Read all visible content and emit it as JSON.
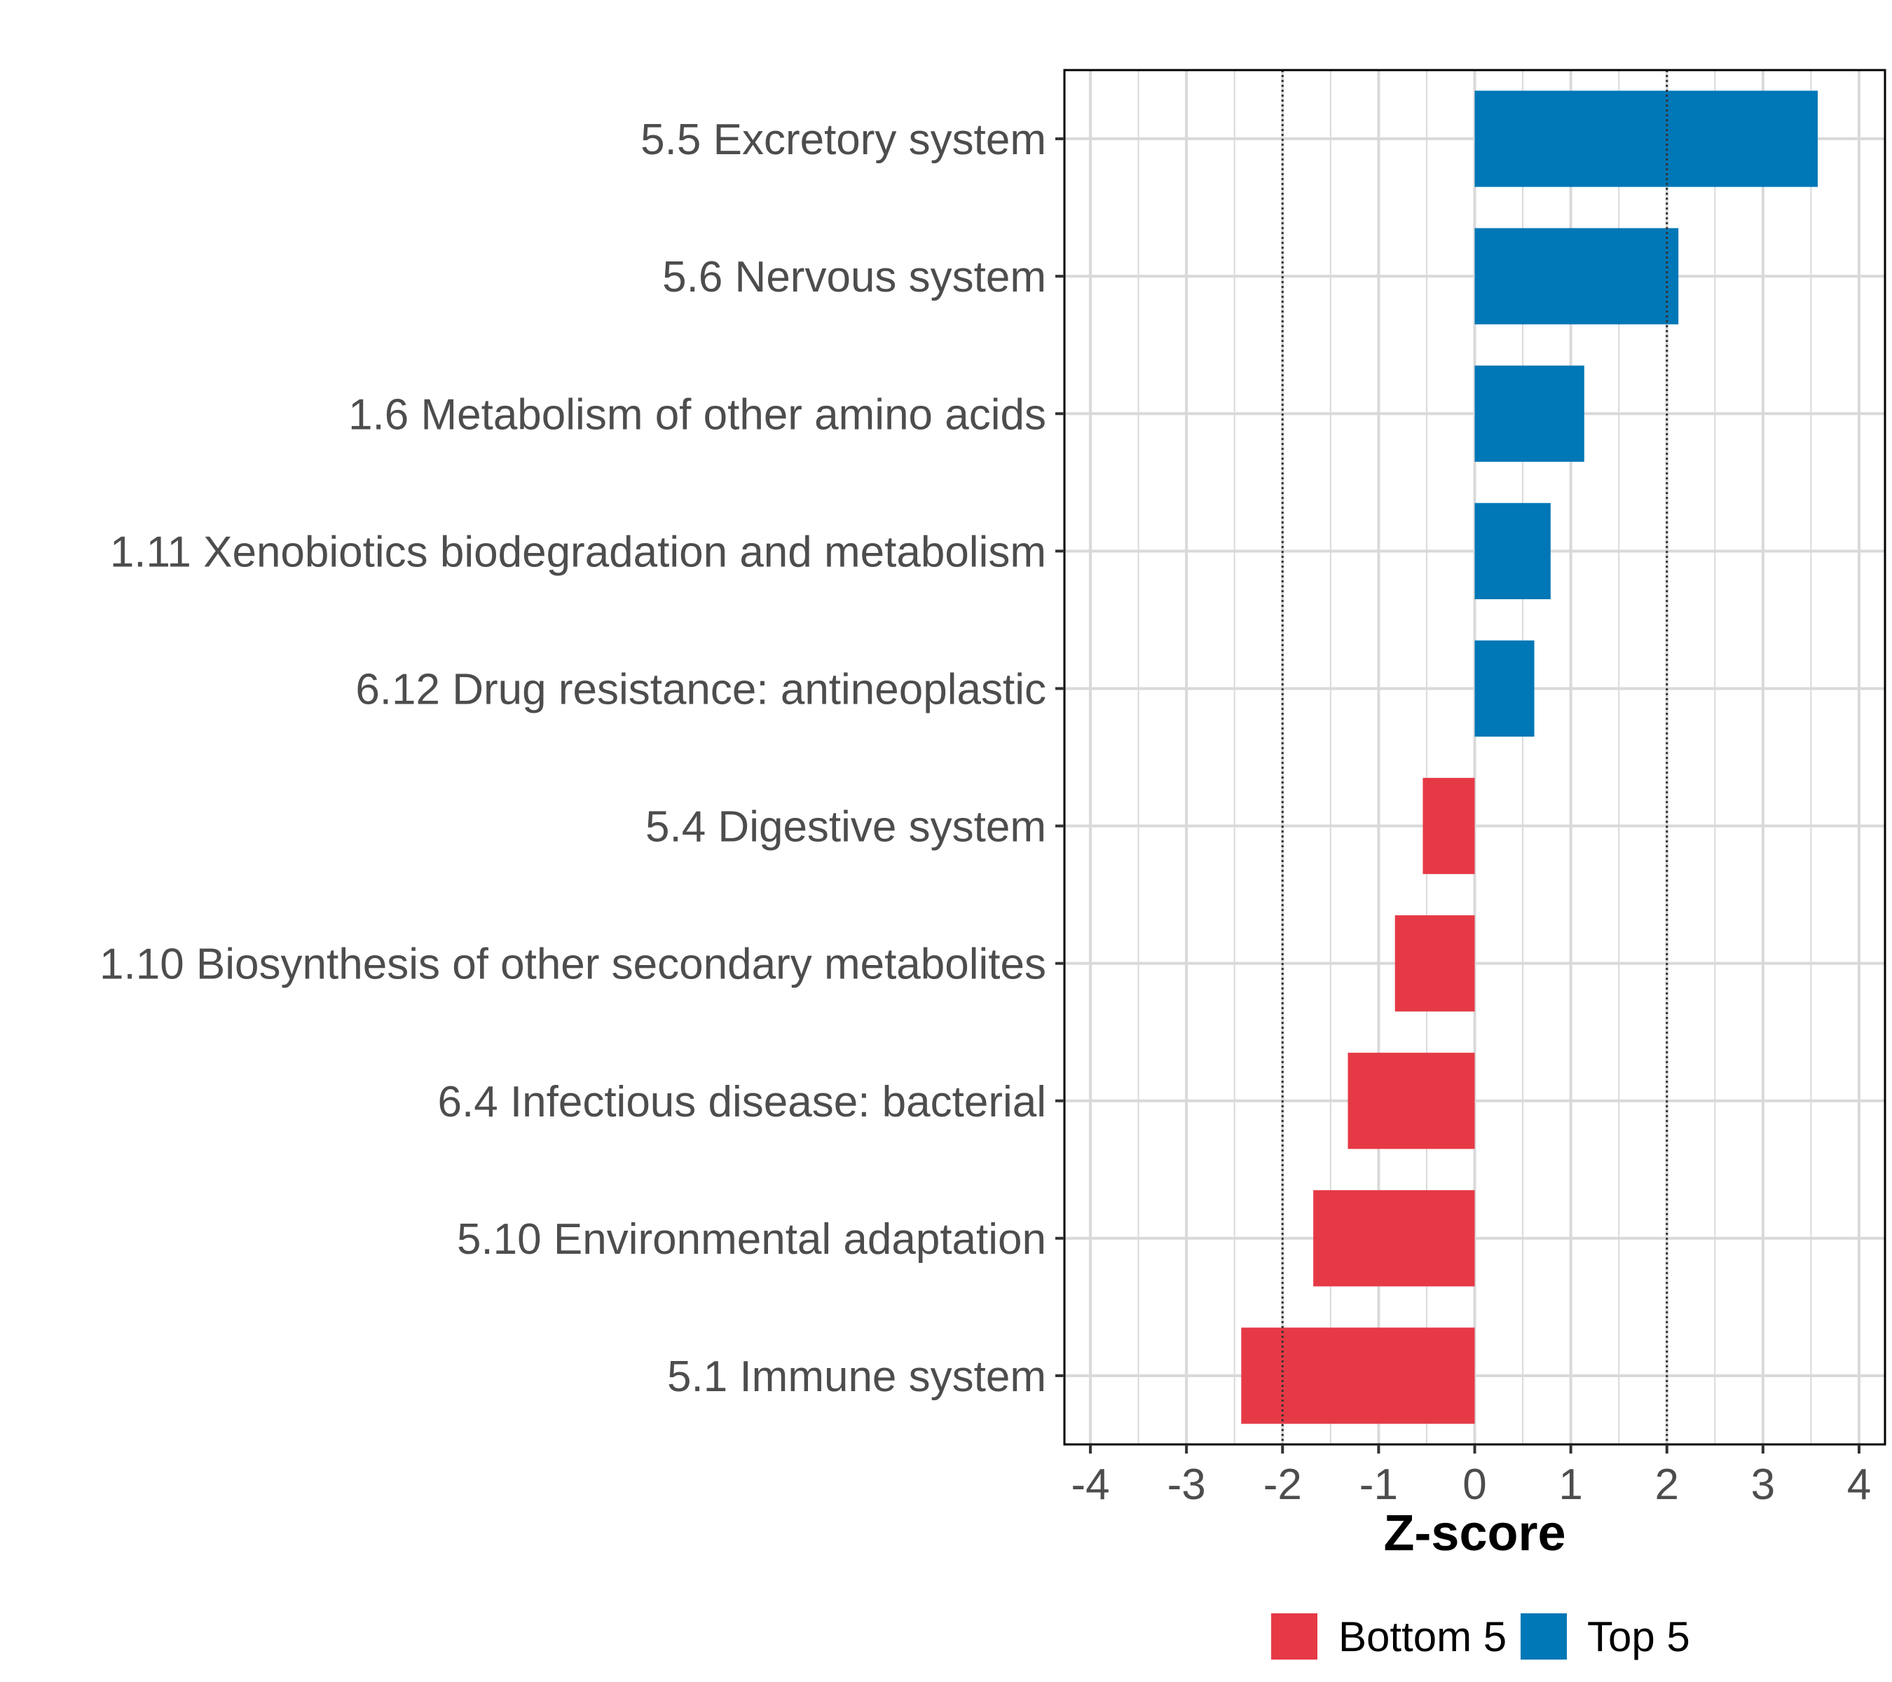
{
  "chart_data": {
    "type": "bar",
    "orientation": "horizontal",
    "xlabel": "Z-score",
    "ylabel": "",
    "xlim": [
      -4,
      4
    ],
    "xticks": [
      -4,
      -3,
      -2,
      -1,
      0,
      1,
      2,
      3,
      4
    ],
    "xtick_labels": [
      "-4",
      "-3",
      "-2",
      "-1",
      "0",
      "1",
      "2",
      "3",
      "4"
    ],
    "grid": true,
    "reference_lines": [
      -2,
      2
    ],
    "categories": [
      "5.5 Excretory system",
      "5.6 Nervous system",
      "1.6 Metabolism of other amino acids",
      "1.11 Xenobiotics biodegradation and metabolism",
      "6.12 Drug resistance: antineoplastic",
      "5.4 Digestive system",
      "1.10 Biosynthesis of other secondary metabolites",
      "6.4 Infectious disease: bacterial",
      "5.10 Environmental adaptation",
      "5.1 Immune system"
    ],
    "values": [
      3.57,
      2.12,
      1.14,
      0.79,
      0.62,
      -0.54,
      -0.83,
      -1.32,
      -1.68,
      -2.43
    ],
    "groups": [
      "Top 5",
      "Top 5",
      "Top 5",
      "Top 5",
      "Top 5",
      "Bottom 5",
      "Bottom 5",
      "Bottom 5",
      "Bottom 5",
      "Bottom 5"
    ],
    "legend": [
      {
        "name": "Bottom 5",
        "color": "#e63946"
      },
      {
        "name": "Top 5",
        "color": "#0077b6"
      }
    ],
    "legend_position": "bottom"
  }
}
